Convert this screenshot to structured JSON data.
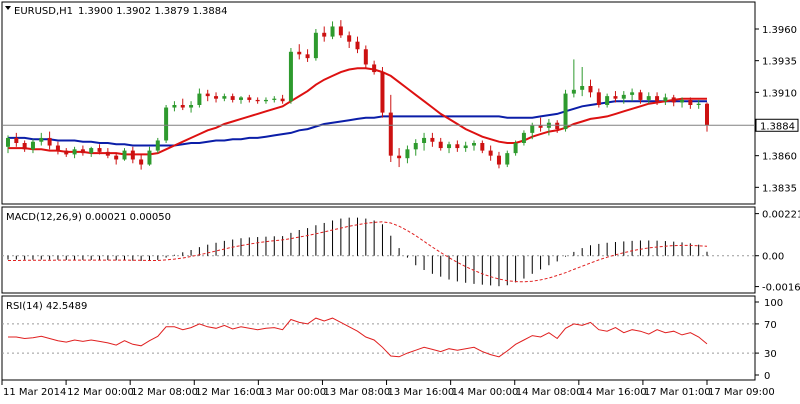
{
  "colors": {
    "bull": "#2e9a2e",
    "bear": "#cc1111",
    "ma_fast": "#dd1111",
    "ma_slow": "#0b1ea8",
    "macd_signal": "#e02020",
    "rsi_line": "#e02020",
    "bg": "#ffffff",
    "price_label_bg": "#ffffff"
  },
  "header": {
    "symbol_tf": "EURUSD,H1",
    "ohlc": "1.3900 1.3902 1.3879 1.3884"
  },
  "chart_data": [
    {
      "type": "candlestick",
      "panel": "price",
      "ylim": [
        1.3825,
        1.3975
      ],
      "y_ticks": [
        "1.3960",
        "1.3935",
        "1.3910",
        "1.3860",
        "1.3835"
      ],
      "current_price_label": "1.3884",
      "current_price": 1.3884,
      "grid": false,
      "candles": [
        [
          1.3867,
          1.3876,
          1.3862,
          1.3874
        ],
        [
          1.3874,
          1.3878,
          1.3867,
          1.387
        ],
        [
          1.387,
          1.3872,
          1.3863,
          1.3865
        ],
        [
          1.3865,
          1.3873,
          1.3862,
          1.3871
        ],
        [
          1.3871,
          1.3878,
          1.3868,
          1.3874
        ],
        [
          1.3874,
          1.3879,
          1.3865,
          1.3868
        ],
        [
          1.3868,
          1.3871,
          1.3861,
          1.3864
        ],
        [
          1.3864,
          1.3866,
          1.3859,
          1.3861
        ],
        [
          1.3861,
          1.3867,
          1.3858,
          1.3865
        ],
        [
          1.3865,
          1.3868,
          1.386,
          1.3862
        ],
        [
          1.3862,
          1.3867,
          1.3859,
          1.3866
        ],
        [
          1.3866,
          1.3869,
          1.3861,
          1.3863
        ],
        [
          1.3863,
          1.3866,
          1.3858,
          1.386
        ],
        [
          1.386,
          1.3862,
          1.3853,
          1.3857
        ],
        [
          1.3857,
          1.3866,
          1.3856,
          1.3864
        ],
        [
          1.3864,
          1.3867,
          1.3854,
          1.3857
        ],
        [
          1.3857,
          1.3861,
          1.3849,
          1.3853
        ],
        [
          1.3853,
          1.3867,
          1.3852,
          1.3864
        ],
        [
          1.3864,
          1.3874,
          1.3862,
          1.3872
        ],
        [
          1.3872,
          1.39,
          1.387,
          1.3898
        ],
        [
          1.3898,
          1.3903,
          1.3895,
          1.39
        ],
        [
          1.39,
          1.3905,
          1.3896,
          1.3898
        ],
        [
          1.3898,
          1.3903,
          1.3894,
          1.39
        ],
        [
          1.39,
          1.3913,
          1.3898,
          1.3909
        ],
        [
          1.3909,
          1.3912,
          1.3903,
          1.3907
        ],
        [
          1.3907,
          1.391,
          1.3902,
          1.3905
        ],
        [
          1.3905,
          1.3909,
          1.3903,
          1.3907
        ],
        [
          1.3907,
          1.3909,
          1.3902,
          1.3904
        ],
        [
          1.3904,
          1.3907,
          1.3901,
          1.3906
        ],
        [
          1.3906,
          1.3908,
          1.3902,
          1.3904
        ],
        [
          1.3904,
          1.3906,
          1.3901,
          1.3903
        ],
        [
          1.3903,
          1.3906,
          1.3901,
          1.3904
        ],
        [
          1.3904,
          1.3907,
          1.3902,
          1.3905
        ],
        [
          1.3905,
          1.3908,
          1.3901,
          1.3903
        ],
        [
          1.3903,
          1.3945,
          1.3901,
          1.3942
        ],
        [
          1.3942,
          1.3948,
          1.3936,
          1.394
        ],
        [
          1.394,
          1.3944,
          1.3934,
          1.3937
        ],
        [
          1.3937,
          1.396,
          1.3935,
          1.3957
        ],
        [
          1.3957,
          1.3962,
          1.395,
          1.3954
        ],
        [
          1.3954,
          1.3966,
          1.3952,
          1.3962
        ],
        [
          1.3962,
          1.3967,
          1.3953,
          1.3955
        ],
        [
          1.3955,
          1.3958,
          1.3945,
          1.395
        ],
        [
          1.395,
          1.3954,
          1.3941,
          1.3944
        ],
        [
          1.3944,
          1.3947,
          1.3929,
          1.3932
        ],
        [
          1.3932,
          1.3935,
          1.3924,
          1.3926
        ],
        [
          1.3926,
          1.393,
          1.389,
          1.3894
        ],
        [
          1.3894,
          1.3908,
          1.3855,
          1.386
        ],
        [
          1.386,
          1.3866,
          1.3851,
          1.3858
        ],
        [
          1.3858,
          1.3868,
          1.3854,
          1.3865
        ],
        [
          1.3865,
          1.3873,
          1.386,
          1.387
        ],
        [
          1.387,
          1.3878,
          1.3864,
          1.3874
        ],
        [
          1.3874,
          1.3878,
          1.3867,
          1.3871
        ],
        [
          1.3871,
          1.3874,
          1.3864,
          1.3866
        ],
        [
          1.3866,
          1.3871,
          1.3862,
          1.3869
        ],
        [
          1.3869,
          1.3872,
          1.3863,
          1.3866
        ],
        [
          1.3866,
          1.3871,
          1.3863,
          1.3868
        ],
        [
          1.3868,
          1.3872,
          1.3864,
          1.387
        ],
        [
          1.387,
          1.3872,
          1.3862,
          1.3864
        ],
        [
          1.3864,
          1.3868,
          1.3856,
          1.386
        ],
        [
          1.386,
          1.3863,
          1.385,
          1.3853
        ],
        [
          1.3853,
          1.3864,
          1.3851,
          1.3862
        ],
        [
          1.3862,
          1.3872,
          1.386,
          1.387
        ],
        [
          1.387,
          1.388,
          1.3868,
          1.3878
        ],
        [
          1.3878,
          1.3886,
          1.3873,
          1.3884
        ],
        [
          1.3884,
          1.389,
          1.3879,
          1.3882
        ],
        [
          1.3882,
          1.3889,
          1.3876,
          1.3886
        ],
        [
          1.3886,
          1.3888,
          1.3878,
          1.3881
        ],
        [
          1.3881,
          1.3912,
          1.3879,
          1.3909
        ],
        [
          1.3909,
          1.3936,
          1.3906,
          1.3912
        ],
        [
          1.3912,
          1.393,
          1.3907,
          1.3915
        ],
        [
          1.3915,
          1.392,
          1.3906,
          1.391
        ],
        [
          1.391,
          1.3913,
          1.3898,
          1.39
        ],
        [
          1.39,
          1.3909,
          1.3898,
          1.3907
        ],
        [
          1.3907,
          1.3911,
          1.3902,
          1.3905
        ],
        [
          1.3905,
          1.3911,
          1.3901,
          1.3908
        ],
        [
          1.3908,
          1.3913,
          1.3903,
          1.391
        ],
        [
          1.391,
          1.3912,
          1.3901,
          1.3904
        ],
        [
          1.3904,
          1.391,
          1.3901,
          1.3907
        ],
        [
          1.3907,
          1.391,
          1.39,
          1.3903
        ],
        [
          1.3903,
          1.3909,
          1.39,
          1.3906
        ],
        [
          1.3906,
          1.3908,
          1.3899,
          1.3902
        ],
        [
          1.3902,
          1.3906,
          1.3898,
          1.3904
        ],
        [
          1.3904,
          1.3906,
          1.3897,
          1.39
        ],
        [
          1.39,
          1.3904,
          1.3897,
          1.3901
        ],
        [
          1.3901,
          1.3902,
          1.3879,
          1.3884
        ]
      ],
      "ma_fast": [
        1.3866,
        1.3866,
        1.3866,
        1.3865,
        1.3865,
        1.3864,
        1.3864,
        1.3863,
        1.3863,
        1.3863,
        1.3862,
        1.3862,
        1.3862,
        1.3862,
        1.3861,
        1.3861,
        1.3861,
        1.3861,
        1.3862,
        1.3865,
        1.3868,
        1.3871,
        1.3874,
        1.3877,
        1.388,
        1.3882,
        1.3885,
        1.3887,
        1.3889,
        1.3891,
        1.3893,
        1.3895,
        1.3897,
        1.3899,
        1.3903,
        1.3907,
        1.3911,
        1.3916,
        1.392,
        1.3923,
        1.3926,
        1.3928,
        1.3929,
        1.3929,
        1.3928,
        1.3926,
        1.3923,
        1.3918,
        1.3913,
        1.3908,
        1.3903,
        1.3898,
        1.3893,
        1.3889,
        1.3885,
        1.3881,
        1.3878,
        1.3875,
        1.3873,
        1.3871,
        1.387,
        1.387,
        1.3872,
        1.3875,
        1.3877,
        1.3879,
        1.388,
        1.3882,
        1.3885,
        1.3887,
        1.3889,
        1.389,
        1.3891,
        1.3893,
        1.3895,
        1.3897,
        1.3899,
        1.3901,
        1.3902,
        1.3903,
        1.3904,
        1.3905,
        1.3905,
        1.3905,
        1.3905
      ],
      "ma_slow": [
        1.3874,
        1.3874,
        1.3874,
        1.3873,
        1.3873,
        1.3873,
        1.3872,
        1.3872,
        1.3872,
        1.3871,
        1.3871,
        1.387,
        1.387,
        1.3869,
        1.3869,
        1.3868,
        1.3868,
        1.3868,
        1.3868,
        1.3868,
        1.3868,
        1.3869,
        1.387,
        1.387,
        1.3871,
        1.3872,
        1.3872,
        1.3873,
        1.3873,
        1.3874,
        1.3874,
        1.3875,
        1.3876,
        1.3877,
        1.3878,
        1.388,
        1.3881,
        1.3883,
        1.3885,
        1.3886,
        1.3887,
        1.3888,
        1.3889,
        1.389,
        1.389,
        1.3891,
        1.3891,
        1.3891,
        1.3891,
        1.3891,
        1.3891,
        1.3891,
        1.3891,
        1.3891,
        1.3891,
        1.3891,
        1.3891,
        1.3891,
        1.3891,
        1.3891,
        1.389,
        1.389,
        1.389,
        1.389,
        1.3891,
        1.3892,
        1.3893,
        1.3895,
        1.3897,
        1.3899,
        1.39,
        1.3901,
        1.3902,
        1.3903,
        1.3903,
        1.3903,
        1.3903,
        1.3903,
        1.3903,
        1.3903,
        1.3903,
        1.3903,
        1.3903,
        1.3903,
        1.3903
      ]
    },
    {
      "type": "histogram",
      "panel": "macd",
      "label": "MACD(12,26,9) 0.00021 0.00050",
      "ylim": [
        -0.0018,
        0.0024
      ],
      "y_ticks": [
        "0.00221",
        "0.00",
        "-0.00162"
      ],
      "zero_line": true,
      "grid": true,
      "histogram": [
        -0.0002,
        -0.0002,
        -0.00021,
        -0.00021,
        -0.0002,
        -0.0002,
        -0.00021,
        -0.00022,
        -0.00022,
        -0.00022,
        -0.00022,
        -0.00022,
        -0.00023,
        -0.00024,
        -0.00024,
        -0.00026,
        -0.00027,
        -0.00026,
        -0.00022,
        -0.0001,
        5e-05,
        0.00018,
        0.0003,
        0.00045,
        0.00058,
        0.00068,
        0.00078,
        0.00085,
        0.00092,
        0.00096,
        0.00098,
        0.001,
        0.00102,
        0.00103,
        0.0012,
        0.00135,
        0.00145,
        0.0016,
        0.00172,
        0.00185,
        0.00195,
        0.002,
        0.002,
        0.00195,
        0.00185,
        0.00165,
        0.00105,
        0.0004,
        -0.0001,
        -0.0005,
        -0.00075,
        -0.00095,
        -0.0011,
        -0.00125,
        -0.00135,
        -0.00142,
        -0.00148,
        -0.00152,
        -0.00156,
        -0.0016,
        -0.00155,
        -0.0014,
        -0.0012,
        -0.00095,
        -0.00072,
        -0.0005,
        -0.0003,
        -5e-05,
        0.0002,
        0.0004,
        0.00055,
        0.00062,
        0.00068,
        0.00072,
        0.00075,
        0.00078,
        0.0008,
        0.0008,
        0.00079,
        0.00077,
        0.00074,
        0.0007,
        0.00065,
        0.00058,
        0.00021
      ],
      "signal": [
        -0.00025,
        -0.00025,
        -0.00024,
        -0.00024,
        -0.00024,
        -0.00024,
        -0.00023,
        -0.00023,
        -0.00023,
        -0.00023,
        -0.00023,
        -0.00023,
        -0.00023,
        -0.00023,
        -0.00023,
        -0.00024,
        -0.00024,
        -0.00025,
        -0.00025,
        -0.00022,
        -0.00018,
        -0.00012,
        -4e-05,
        5e-05,
        0.00015,
        0.00025,
        0.00035,
        0.00045,
        0.00053,
        0.00061,
        0.00068,
        0.00074,
        0.00079,
        0.00083,
        0.0009,
        0.00098,
        0.00106,
        0.00115,
        0.00125,
        0.00135,
        0.00145,
        0.00155,
        0.00163,
        0.0017,
        0.00175,
        0.00178,
        0.00172,
        0.00155,
        0.00132,
        0.00105,
        0.00075,
        0.00045,
        0.00017,
        -0.0001,
        -0.00035,
        -0.00057,
        -0.00077,
        -0.00095,
        -0.0011,
        -0.00122,
        -0.00131,
        -0.00136,
        -0.00137,
        -0.00134,
        -0.00127,
        -0.00117,
        -0.00104,
        -0.00089,
        -0.00072,
        -0.00055,
        -0.00038,
        -0.00022,
        -8e-05,
        5e-05,
        0.00016,
        0.00026,
        0.00034,
        0.00041,
        0.00046,
        0.0005,
        0.00053,
        0.00054,
        0.00054,
        0.00052,
        0.0005
      ]
    },
    {
      "type": "line",
      "panel": "rsi",
      "label": "RSI(14) 42.5489",
      "ylim": [
        0,
        100
      ],
      "y_ticks": [
        "100",
        "70",
        "30",
        "0"
      ],
      "levels": [
        70,
        30
      ],
      "grid": true,
      "values": [
        52,
        52,
        50,
        51,
        53,
        50,
        47,
        45,
        48,
        46,
        48,
        46,
        44,
        41,
        47,
        42,
        40,
        47,
        53,
        66,
        66,
        62,
        65,
        70,
        66,
        64,
        68,
        63,
        66,
        64,
        62,
        64,
        65,
        62,
        76,
        72,
        70,
        78,
        74,
        78,
        72,
        66,
        60,
        52,
        48,
        38,
        26,
        25,
        30,
        34,
        38,
        35,
        32,
        36,
        34,
        36,
        38,
        32,
        28,
        25,
        33,
        42,
        48,
        54,
        52,
        58,
        50,
        64,
        70,
        68,
        72,
        62,
        60,
        65,
        58,
        62,
        60,
        56,
        62,
        58,
        60,
        55,
        58,
        52,
        42.5489
      ]
    },
    {
      "type": "axis",
      "panel": "time",
      "x_ticks": [
        "11 Mar 2014",
        "12 Mar 00:00",
        "12 Mar 08:00",
        "12 Mar 16:00",
        "13 Mar 00:00",
        "13 Mar 08:00",
        "13 Mar 16:00",
        "14 Mar 00:00",
        "14 Mar 08:00",
        "14 Mar 16:00",
        "17 Mar 01:00",
        "17 Mar 09:00"
      ]
    }
  ]
}
